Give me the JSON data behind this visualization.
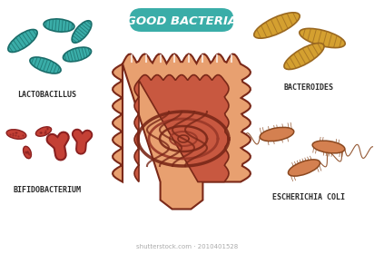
{
  "title": "GOOD BACTERIA",
  "title_bg": "#3aada8",
  "title_color": "#ffffff",
  "bg_color": "#ffffff",
  "labels": {
    "lactobacillus": "LACTOBACILLUS",
    "bifidobacterium": "BIFIDOBACTERIUM",
    "bacteroides": "BACTEROIDES",
    "ecoli": "ESCHERICHIA COLI"
  },
  "label_color": "#2a2a2a",
  "label_fontsize": 6.0,
  "lacto_color": "#3aada8",
  "lacto_outline": "#1a6d6a",
  "bifido_color": "#c44035",
  "bifido_outline": "#8a2020",
  "bact_color": "#d4a030",
  "bact_outline": "#9a6820",
  "ecoli_color": "#d48050",
  "ecoli_outline": "#8a4820",
  "intestine_outer": "#e8a070",
  "intestine_mid": "#c85840",
  "intestine_dark": "#9a3828",
  "intestine_outline": "#7a2818",
  "intestine_light": "#e8c8a0",
  "shutterstock_text": "shutterstock.com · 2010401528",
  "shutterstock_color": "#aaaaaa",
  "shutterstock_fontsize": 5.0
}
